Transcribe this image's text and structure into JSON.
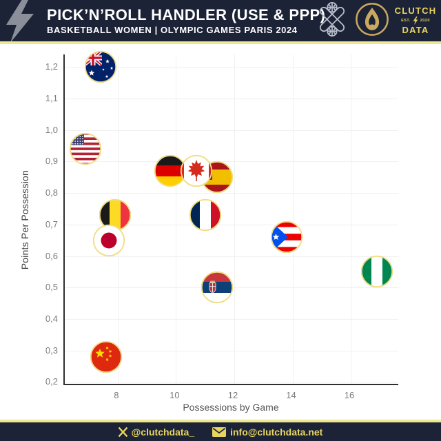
{
  "header": {
    "title": "PICK’N’ROLL HANDLER (USE & PPP)",
    "subtitle": "BASKETBALL WOMEN | OLYMPIC GAMES PARIS 2024",
    "brand": {
      "line1": "CLUTCH",
      "est": "EST.",
      "year": "2020",
      "line2": "DATA"
    }
  },
  "footer": {
    "twitter": "@clutchdata_",
    "email": "info@clutchdata.net"
  },
  "colors": {
    "navy": "#1c2336",
    "divider_yellow": "#ede88f",
    "brand_yellow": "#e8d45f",
    "logo_gold": "#c9a85f",
    "bolt_gray": "#8a8f99",
    "gridline": "#f0f0f0",
    "axis": "#2e2e2e",
    "tick_text": "#7b7b7b",
    "flag_ring": "#f0dd85"
  },
  "chart_data": {
    "type": "scatter",
    "title": "PICK’N’ROLL HANDLER (USE & PPP)",
    "subtitle": "BASKETBALL WOMEN | OLYMPIC GAMES PARIS 2024",
    "xlabel": "Possessions by Game",
    "ylabel": "Points Per Possession",
    "xlim": [
      6.18,
      17.68
    ],
    "ylim": [
      0.19,
      1.24
    ],
    "x_ticks": [
      8,
      10,
      12,
      14,
      16
    ],
    "y_ticks": [
      {
        "v": 0.2,
        "label": "0,2"
      },
      {
        "v": 0.3,
        "label": "0,3"
      },
      {
        "v": 0.4,
        "label": "0,4"
      },
      {
        "v": 0.5,
        "label": "0,5"
      },
      {
        "v": 0.6,
        "label": "0,6"
      },
      {
        "v": 0.7,
        "label": "0,7"
      },
      {
        "v": 0.8,
        "label": "0,8"
      },
      {
        "v": 0.9,
        "label": "0,9"
      },
      {
        "v": 1.0,
        "label": "1,0"
      },
      {
        "v": 1.1,
        "label": "1,1"
      },
      {
        "v": 1.2,
        "label": "1,2"
      }
    ],
    "grid": true,
    "marker": "country-flag-circle",
    "points": [
      {
        "team": "Australia",
        "code": "aus",
        "x": 7.4,
        "y": 1.2
      },
      {
        "team": "USA",
        "code": "usa",
        "x": 6.9,
        "y": 0.94
      },
      {
        "team": "Germany",
        "code": "ger",
        "x": 9.8,
        "y": 0.87
      },
      {
        "team": "Spain",
        "code": "esp",
        "x": 11.4,
        "y": 0.85
      },
      {
        "team": "Canada",
        "code": "can",
        "x": 10.7,
        "y": 0.87
      },
      {
        "team": "Belgium",
        "code": "bel",
        "x": 7.9,
        "y": 0.73
      },
      {
        "team": "Japan",
        "code": "jpn",
        "x": 7.7,
        "y": 0.65
      },
      {
        "team": "France",
        "code": "fra",
        "x": 11.0,
        "y": 0.73
      },
      {
        "team": "Puerto Rico",
        "code": "pur",
        "x": 13.8,
        "y": 0.66
      },
      {
        "team": "Nigeria",
        "code": "nga",
        "x": 16.9,
        "y": 0.55
      },
      {
        "team": "Serbia",
        "code": "srb",
        "x": 11.4,
        "y": 0.5
      },
      {
        "team": "China",
        "code": "chn",
        "x": 7.6,
        "y": 0.28
      }
    ]
  }
}
